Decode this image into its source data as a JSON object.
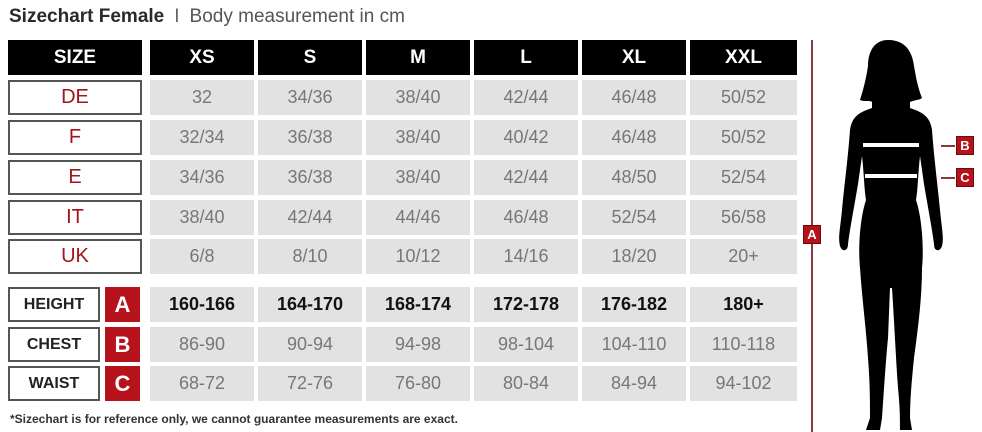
{
  "title": {
    "main": "Sizechart Female",
    "separator": "I",
    "subtitle": "Body measurement in cm"
  },
  "header": {
    "size_label": "SIZE",
    "sizes": [
      "XS",
      "S",
      "M",
      "L",
      "XL",
      "XXL"
    ]
  },
  "conversion_rows": [
    {
      "label": "DE",
      "values": [
        "32",
        "34/36",
        "38/40",
        "42/44",
        "46/48",
        "50/52"
      ]
    },
    {
      "label": "F",
      "values": [
        "32/34",
        "36/38",
        "38/40",
        "40/42",
        "46/48",
        "50/52"
      ]
    },
    {
      "label": "E",
      "values": [
        "34/36",
        "36/38",
        "38/40",
        "42/44",
        "48/50",
        "52/54"
      ]
    },
    {
      "label": "IT",
      "values": [
        "38/40",
        "42/44",
        "44/46",
        "46/48",
        "52/54",
        "56/58"
      ]
    },
    {
      "label": "UK",
      "values": [
        "6/8",
        "8/10",
        "10/12",
        "14/16",
        "18/20",
        "20+"
      ]
    }
  ],
  "measurement_rows": [
    {
      "label": "HEIGHT",
      "marker": "A",
      "values": [
        "160-166",
        "164-170",
        "168-174",
        "172-178",
        "176-182",
        "180+"
      ]
    },
    {
      "label": "CHEST",
      "marker": "B",
      "values": [
        "86-90",
        "90-94",
        "94-98",
        "98-104",
        "104-110",
        "110-118"
      ]
    },
    {
      "label": "WAIST",
      "marker": "C",
      "values": [
        "68-72",
        "72-76",
        "76-80",
        "80-84",
        "84-94",
        "94-102"
      ]
    }
  ],
  "footnote": "*Sizechart is for reference only, we cannot guarantee measurements are exact.",
  "figure": {
    "markers": {
      "height": "A",
      "chest": "B",
      "waist": "C"
    }
  },
  "colors": {
    "accent": "#b5121b",
    "header_bg": "#000000",
    "cell_bg": "#e2e2e2"
  }
}
